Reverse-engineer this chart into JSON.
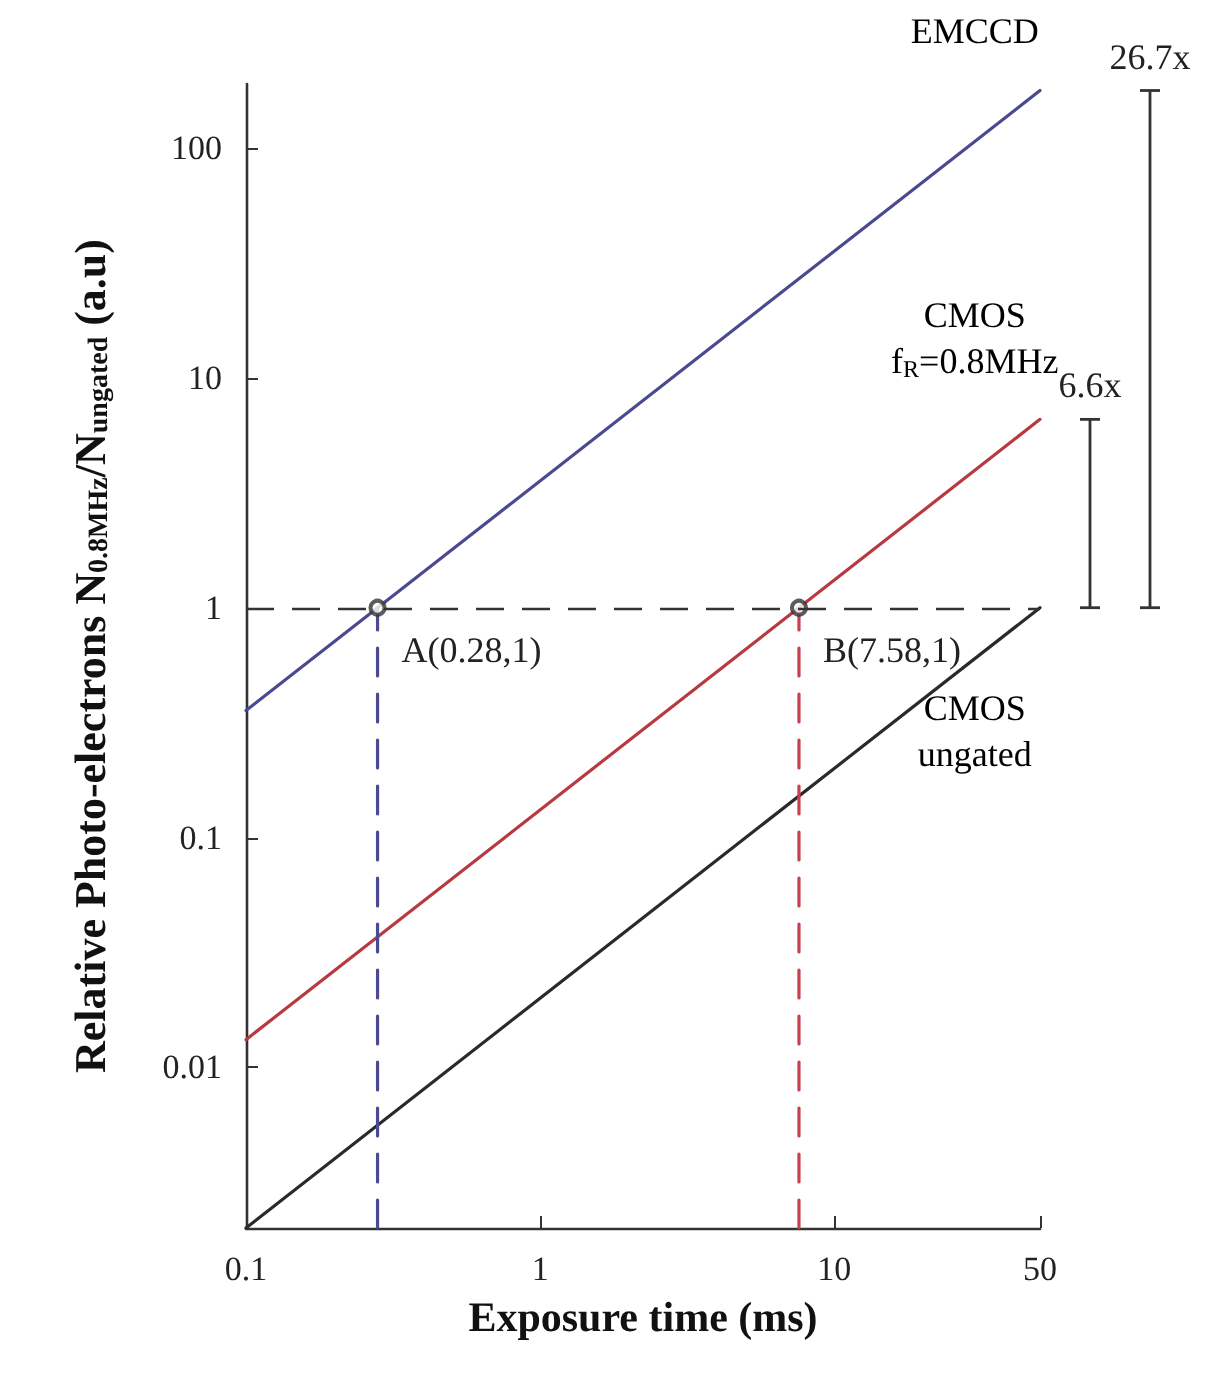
{
  "chart_data": {
    "type": "line",
    "xlabel": "Exposure time (ms)",
    "ylabel": "Relative Photo-electrons N$_{0.8MHz}$/N$_{ungated}$ (a.u)",
    "log": "xy",
    "xlim": [
      0.1,
      50
    ],
    "xticks": [
      0.1,
      1,
      10,
      50
    ],
    "ylim": [
      0.002,
      190
    ],
    "yticks": [
      0.01,
      0.1,
      1,
      10,
      100
    ],
    "grid": false,
    "legend": false,
    "series": [
      {
        "name": "EMCCD",
        "color": "#4a4a90",
        "x": [
          0.1,
          50
        ],
        "values": [
          0.357,
          178
        ]
      },
      {
        "name": "CMOS\nf$_{R}$=0.8MHz",
        "color": "#b83a40",
        "x": [
          0.1,
          50
        ],
        "values": [
          0.0132,
          6.6
        ]
      },
      {
        "name": "CMOS\nungated",
        "color": "#2a2a2a",
        "x": [
          0.1,
          50
        ],
        "values": [
          0.002,
          1
        ]
      },
      {
        "type": "line",
        "color": "#4a4a90",
        "line_style": "dashed",
        "x": [
          0.28,
          0.28
        ],
        "values": [
          0.002,
          1
        ]
      },
      {
        "type": "line",
        "color": "#c84050",
        "line_style": "dashed",
        "x": [
          7.58,
          7.58
        ],
        "values": [
          0.002,
          1
        ]
      },
      {
        "type": "scatter",
        "color": "#333333",
        "marker": "circle",
        "x": [
          0.28,
          7.58
        ],
        "values": [
          1,
          1
        ]
      }
    ],
    "ref_lines": [
      {
        "axis": "y",
        "value": 1,
        "color": "#333333",
        "line_style": "dashed"
      }
    ],
    "annotations": [
      {
        "text": "A(0.28,1)",
        "x": 0.28,
        "y": 1
      },
      {
        "text": "B(7.58,1)",
        "x": 7.58,
        "y": 1
      },
      {
        "text": "26.7x",
        "x": 50,
        "y": 178
      },
      {
        "text": "6.6x",
        "x": 50,
        "y": 6.6
      }
    ]
  }
}
